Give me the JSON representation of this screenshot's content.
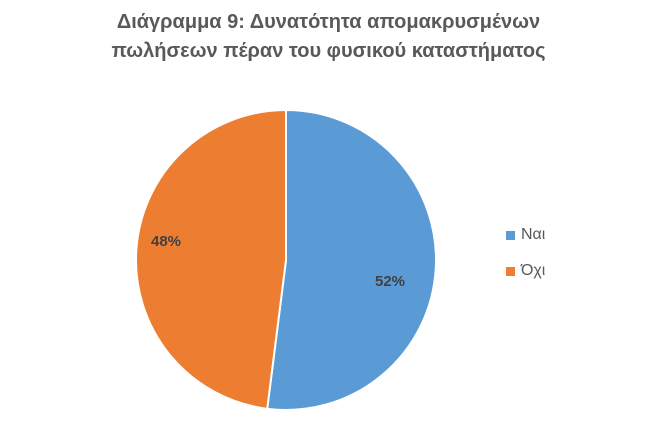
{
  "chart_data": {
    "type": "pie",
    "title": [
      "Διάγραμμα 9: Δυνατότητα απομακρυσμένων",
      "πωλήσεων πέραν του φυσικού καταστήματος"
    ],
    "categories": [
      "Ναι",
      "Όχι"
    ],
    "values": [
      52,
      48
    ],
    "data_labels": [
      "52%",
      "48%"
    ],
    "colors": [
      "#5b9bd5",
      "#ed7d31"
    ],
    "legend_position": "right",
    "start_angle": "12 o'clock, clockwise"
  }
}
